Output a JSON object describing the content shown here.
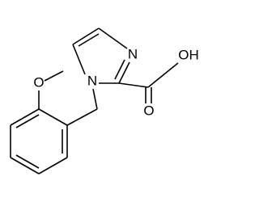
{
  "atoms": {
    "methoxy_oxygen": "O",
    "ring_nitrogen_1": "N",
    "ring_nitrogen_3": "N",
    "hydroxyl": "OH",
    "carbonyl_oxygen": "O"
  }
}
